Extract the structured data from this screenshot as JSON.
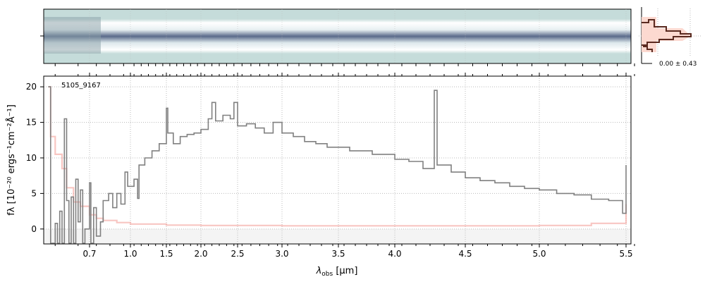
{
  "chart_data": {
    "type": "line",
    "object_label": "5105_9167",
    "xlabel": "λobs [μm]",
    "xlabel_main": "λ",
    "xlabel_sub": "obs",
    "xlabel_unit": " [μm]",
    "ylabel": "fλ [10⁻²⁰ ergs⁻¹cm⁻²Å⁻¹]",
    "ylim": [
      -2.1,
      21.5
    ],
    "xticks": [
      0.7,
      1.0,
      1.5,
      2.0,
      2.5,
      3.0,
      3.5,
      4.0,
      4.5,
      5.0,
      5.5
    ],
    "xtick_labels": [
      "0.7",
      "1.0",
      "1.5",
      "2.0",
      "2.5",
      "3.0",
      "3.5",
      "4.0",
      "4.5",
      "5.0",
      "5.5"
    ],
    "yticks": [
      0,
      5,
      10,
      15,
      20
    ],
    "ytick_labels": [
      "0",
      "5",
      "10",
      "15",
      "20"
    ],
    "grid": true,
    "series": [
      {
        "name": "flux",
        "color": "#808080",
        "x": [
          0.52,
          0.53,
          0.55,
          0.56,
          0.57,
          0.58,
          0.59,
          0.6,
          0.61,
          0.62,
          0.63,
          0.64,
          0.65,
          0.66,
          0.67,
          0.68,
          0.7,
          0.71,
          0.73,
          0.75,
          0.78,
          0.8,
          0.84,
          0.87,
          0.9,
          0.93,
          0.96,
          0.98,
          1.0,
          1.05,
          1.1,
          1.12,
          1.2,
          1.3,
          1.4,
          1.5,
          1.52,
          1.6,
          1.7,
          1.8,
          1.9,
          2.0,
          2.1,
          2.15,
          2.2,
          2.3,
          2.4,
          2.45,
          2.5,
          2.6,
          2.7,
          2.8,
          2.9,
          3.0,
          3.1,
          3.2,
          3.3,
          3.4,
          3.5,
          3.6,
          3.7,
          3.8,
          3.9,
          4.0,
          4.1,
          4.2,
          4.28,
          4.3,
          4.4,
          4.5,
          4.6,
          4.7,
          4.8,
          4.9,
          5.0,
          5.1,
          5.2,
          5.3,
          5.4,
          5.48,
          5.5
        ],
        "y": [
          20,
          -2,
          0.8,
          -2,
          2.5,
          -2,
          15.5,
          4,
          -2,
          4.5,
          -2,
          7,
          1,
          5.5,
          -2,
          0,
          6.5,
          -2,
          3,
          -1,
          1,
          4,
          5,
          3,
          5,
          3.5,
          8,
          6,
          6,
          7,
          4.3,
          9,
          10,
          11,
          12,
          17,
          13.5,
          12,
          13,
          13.3,
          13.5,
          14,
          15.5,
          17.8,
          15.2,
          16,
          15.5,
          17.8,
          14.5,
          14.8,
          14.2,
          13.5,
          15,
          13.5,
          13,
          12.3,
          12,
          11.5,
          11.5,
          11,
          11,
          10.5,
          10.5,
          9.8,
          9.5,
          8.5,
          19.5,
          9,
          8,
          7.2,
          6.8,
          6.5,
          6,
          5.7,
          5.5,
          5,
          4.8,
          4.2,
          4,
          2.2,
          9
        ]
      },
      {
        "name": "uncertainty",
        "color": "#f4a09a",
        "x": [
          0.52,
          0.53,
          0.55,
          0.58,
          0.6,
          0.63,
          0.66,
          0.7,
          0.75,
          0.8,
          0.9,
          1.0,
          1.5,
          2.0,
          3.0,
          4.0,
          5.0,
          5.3,
          5.5
        ],
        "y": [
          20,
          13,
          10.5,
          8.5,
          5.8,
          3.8,
          3.2,
          2,
          1.5,
          1.2,
          0.9,
          0.7,
          0.55,
          0.5,
          0.45,
          0.45,
          0.5,
          0.8,
          3.5
        ]
      }
    ],
    "side_histogram": {
      "label": "0.00 ± 0.43"
    }
  }
}
